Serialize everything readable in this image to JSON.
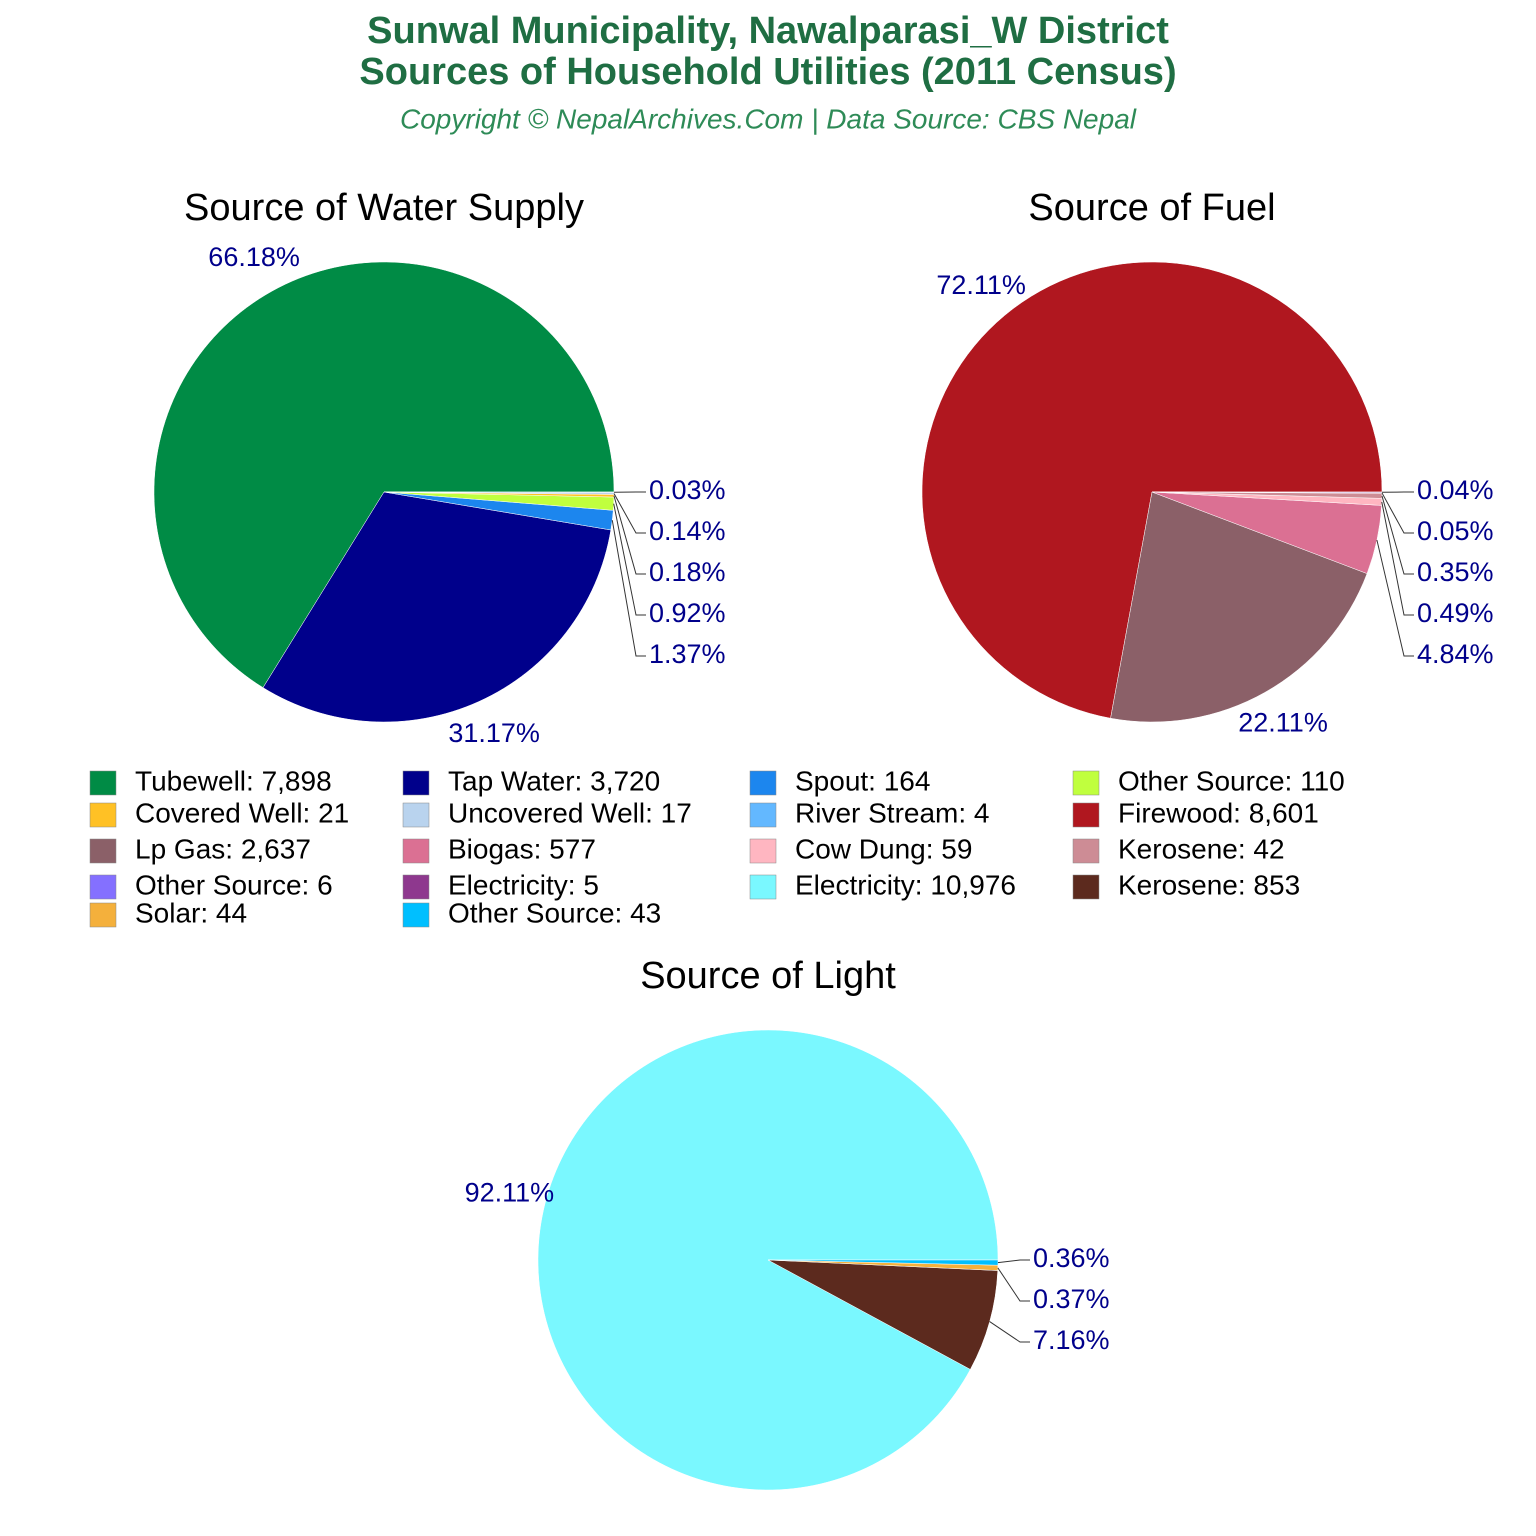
{
  "header": {
    "title_lines": [
      "Sunwal Municipality, Nawalparasi_W District",
      "Sources of Household Utilities (2011 Census)"
    ],
    "subtitle": "Copyright © NepalArchives.Com | Data Source: CBS Nepal"
  },
  "chart_data": [
    {
      "type": "pie",
      "title": "Source of Water Supply",
      "categories": [
        "Tubewell: 7,898",
        "Tap Water: 3,720",
        "Spout: 164",
        "Other Source: 110",
        "Covered Well: 21",
        "Uncovered Well: 17",
        "River Stream: 4"
      ],
      "values": [
        66.18,
        31.17,
        1.37,
        0.92,
        0.18,
        0.14,
        0.03
      ],
      "value_labels": [
        "66.18%",
        "31.17%",
        "1.37%",
        "0.92%",
        "0.18%",
        "0.14%",
        "0.03%"
      ],
      "colors": [
        "#008B45",
        "#00008B",
        "#1C86EE",
        "#C0FF3E",
        "#FFC125",
        "#B9D3EE",
        "#63B8FF"
      ]
    },
    {
      "type": "pie",
      "title": "Source of Fuel",
      "categories": [
        "Firewood: 8,601",
        "Lp Gas: 2,637",
        "Biogas: 577",
        "Cow Dung: 59",
        "Kerosene: 42",
        "Other Source: 6",
        "Electricity: 5"
      ],
      "values": [
        72.11,
        22.11,
        4.84,
        0.49,
        0.35,
        0.05,
        0.04
      ],
      "value_labels": [
        "72.11%",
        "22.11%",
        "4.84%",
        "0.49%",
        "0.35%",
        "0.05%",
        "0.04%"
      ],
      "colors": [
        "#B0171F",
        "#8B6068",
        "#DB7093",
        "#FFB6C1",
        "#CD8C95",
        "#8470FF",
        "#8E388E"
      ]
    },
    {
      "type": "pie",
      "title": "Source of Light",
      "categories": [
        "Electricity: 10,976",
        "Kerosene: 853",
        "Solar: 44",
        "Other Source: 43"
      ],
      "values": [
        92.11,
        7.16,
        0.37,
        0.36
      ],
      "value_labels": [
        "92.11%",
        "7.16%",
        "0.37%",
        "0.36%"
      ],
      "colors": [
        "#7AF8FF",
        "#5C2A1E",
        "#F4B03C",
        "#00BFFF"
      ]
    }
  ]
}
